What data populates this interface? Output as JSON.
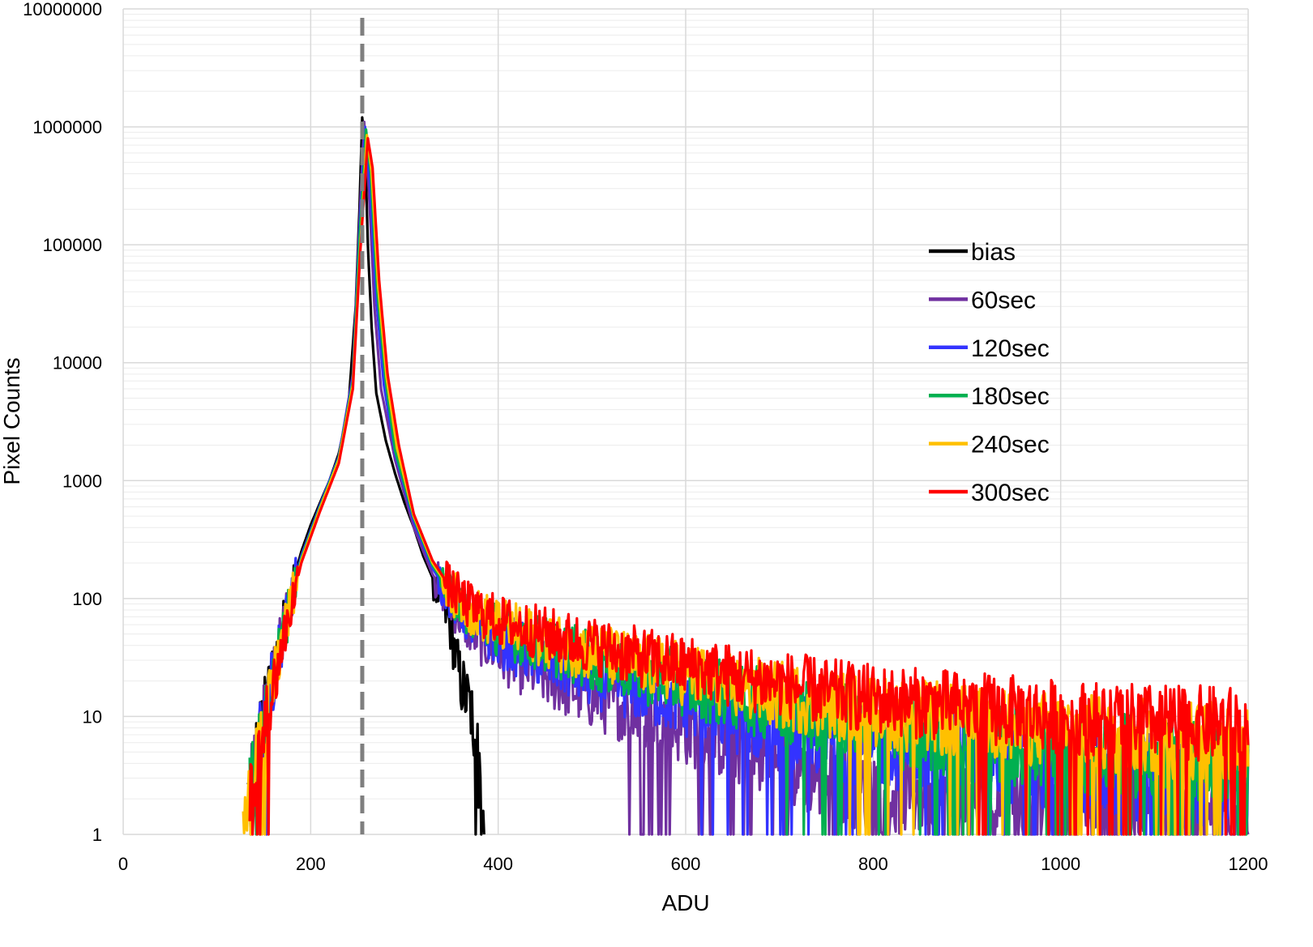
{
  "chart_data": {
    "type": "line",
    "title": "",
    "xlabel": "ADU",
    "ylabel": "Pixel Counts",
    "xlim": [
      0,
      1200
    ],
    "ylim": [
      1,
      10000000
    ],
    "yscale": "log",
    "grid": true,
    "legend_position": "right",
    "x_ticks": [
      "0",
      "200",
      "400",
      "600",
      "800",
      "1000",
      "1200"
    ],
    "y_ticks": [
      "1",
      "10",
      "100",
      "1000",
      "10000",
      "100000",
      "1000000",
      "10000000"
    ],
    "reference_line": {
      "x": 255,
      "style": "dashed",
      "color": "#7f7f7f"
    },
    "series": [
      {
        "name": "bias",
        "color": "#000000",
        "points": [
          [
            133,
            2
          ],
          [
            140,
            4
          ],
          [
            150,
            10
          ],
          [
            160,
            25
          ],
          [
            170,
            55
          ],
          [
            180,
            130
          ],
          [
            190,
            250
          ],
          [
            200,
            420
          ],
          [
            210,
            650
          ],
          [
            220,
            1000
          ],
          [
            230,
            1700
          ],
          [
            240,
            4000
          ],
          [
            248,
            30000
          ],
          [
            252,
            200000
          ],
          [
            255,
            1200000
          ],
          [
            258,
            700000
          ],
          [
            261,
            100000
          ],
          [
            265,
            20000
          ],
          [
            270,
            5500
          ],
          [
            280,
            2200
          ],
          [
            290,
            1150
          ],
          [
            300,
            650
          ],
          [
            310,
            400
          ],
          [
            320,
            230
          ],
          [
            330,
            150
          ],
          [
            340,
            95
          ],
          [
            350,
            55
          ],
          [
            355,
            30
          ],
          [
            360,
            20
          ],
          [
            365,
            15
          ],
          [
            370,
            12
          ],
          [
            375,
            8
          ],
          [
            380,
            3
          ],
          [
            385,
            1
          ]
        ]
      },
      {
        "name": "60sec",
        "color": "#7030a0",
        "points": [
          [
            135,
            2
          ],
          [
            150,
            9
          ],
          [
            170,
            50
          ],
          [
            190,
            230
          ],
          [
            210,
            620
          ],
          [
            230,
            1600
          ],
          [
            245,
            8000
          ],
          [
            252,
            150000
          ],
          [
            257,
            1100000
          ],
          [
            262,
            300000
          ],
          [
            268,
            30000
          ],
          [
            275,
            6000
          ],
          [
            290,
            1500
          ],
          [
            310,
            400
          ],
          [
            330,
            160
          ],
          [
            350,
            90
          ],
          [
            370,
            55
          ],
          [
            400,
            35
          ],
          [
            450,
            22
          ],
          [
            500,
            15
          ],
          [
            550,
            11
          ],
          [
            600,
            8
          ],
          [
            650,
            6
          ],
          [
            700,
            4
          ],
          [
            750,
            3
          ],
          [
            800,
            2.5
          ],
          [
            900,
            2
          ],
          [
            1000,
            1.8
          ],
          [
            1100,
            1.6
          ],
          [
            1200,
            1.4
          ]
        ]
      },
      {
        "name": "120sec",
        "color": "#3333ff",
        "points": [
          [
            135,
            2
          ],
          [
            150,
            9
          ],
          [
            170,
            50
          ],
          [
            190,
            230
          ],
          [
            210,
            620
          ],
          [
            230,
            1600
          ],
          [
            245,
            7500
          ],
          [
            252,
            130000
          ],
          [
            258,
            1000000
          ],
          [
            263,
            350000
          ],
          [
            270,
            35000
          ],
          [
            278,
            6500
          ],
          [
            290,
            1700
          ],
          [
            310,
            450
          ],
          [
            330,
            180
          ],
          [
            350,
            100
          ],
          [
            370,
            65
          ],
          [
            400,
            45
          ],
          [
            450,
            30
          ],
          [
            500,
            22
          ],
          [
            550,
            17
          ],
          [
            600,
            13
          ],
          [
            650,
            10
          ],
          [
            700,
            8
          ],
          [
            750,
            6.5
          ],
          [
            800,
            5.5
          ],
          [
            900,
            4.5
          ],
          [
            1000,
            3.5
          ],
          [
            1100,
            3
          ],
          [
            1200,
            2.5
          ]
        ]
      },
      {
        "name": "180sec",
        "color": "#00b050",
        "points": [
          [
            135,
            2
          ],
          [
            150,
            8
          ],
          [
            170,
            48
          ],
          [
            190,
            220
          ],
          [
            210,
            600
          ],
          [
            230,
            1550
          ],
          [
            245,
            7000
          ],
          [
            252,
            110000
          ],
          [
            259,
            950000
          ],
          [
            264,
            400000
          ],
          [
            271,
            40000
          ],
          [
            280,
            7000
          ],
          [
            290,
            1800
          ],
          [
            310,
            480
          ],
          [
            330,
            190
          ],
          [
            350,
            110
          ],
          [
            370,
            75
          ],
          [
            400,
            55
          ],
          [
            450,
            40
          ],
          [
            500,
            30
          ],
          [
            550,
            24
          ],
          [
            600,
            19
          ],
          [
            650,
            15
          ],
          [
            700,
            12
          ],
          [
            750,
            10
          ],
          [
            800,
            8
          ],
          [
            900,
            6.5
          ],
          [
            1000,
            5
          ],
          [
            1100,
            4.5
          ],
          [
            1200,
            4
          ]
        ]
      },
      {
        "name": "240sec",
        "color": "#ffc000",
        "points": [
          [
            128,
            2
          ],
          [
            150,
            7
          ],
          [
            170,
            45
          ],
          [
            190,
            210
          ],
          [
            210,
            580
          ],
          [
            230,
            1500
          ],
          [
            245,
            6500
          ],
          [
            253,
            100000
          ],
          [
            260,
            850000
          ],
          [
            265,
            420000
          ],
          [
            272,
            45000
          ],
          [
            281,
            7500
          ],
          [
            292,
            1900
          ],
          [
            310,
            500
          ],
          [
            330,
            200
          ],
          [
            350,
            115
          ],
          [
            370,
            80
          ],
          [
            400,
            60
          ],
          [
            450,
            45
          ],
          [
            500,
            35
          ],
          [
            550,
            28
          ],
          [
            600,
            23
          ],
          [
            650,
            18
          ],
          [
            700,
            15
          ],
          [
            750,
            13
          ],
          [
            800,
            11
          ],
          [
            900,
            9
          ],
          [
            1000,
            7.5
          ],
          [
            1100,
            6.5
          ],
          [
            1200,
            6
          ]
        ]
      },
      {
        "name": "300sec",
        "color": "#ff0000",
        "points": [
          [
            135,
            2
          ],
          [
            150,
            7
          ],
          [
            170,
            42
          ],
          [
            190,
            200
          ],
          [
            210,
            550
          ],
          [
            230,
            1400
          ],
          [
            245,
            6000
          ],
          [
            253,
            90000
          ],
          [
            261,
            800000
          ],
          [
            266,
            450000
          ],
          [
            273,
            50000
          ],
          [
            282,
            8000
          ],
          [
            294,
            2000
          ],
          [
            310,
            520
          ],
          [
            330,
            210
          ],
          [
            350,
            120
          ],
          [
            370,
            85
          ],
          [
            400,
            65
          ],
          [
            450,
            50
          ],
          [
            500,
            40
          ],
          [
            550,
            32
          ],
          [
            600,
            27
          ],
          [
            650,
            22
          ],
          [
            700,
            19
          ],
          [
            750,
            16
          ],
          [
            800,
            14
          ],
          [
            900,
            12
          ],
          [
            1000,
            10
          ],
          [
            1100,
            9
          ],
          [
            1200,
            8.5
          ]
        ]
      }
    ]
  }
}
